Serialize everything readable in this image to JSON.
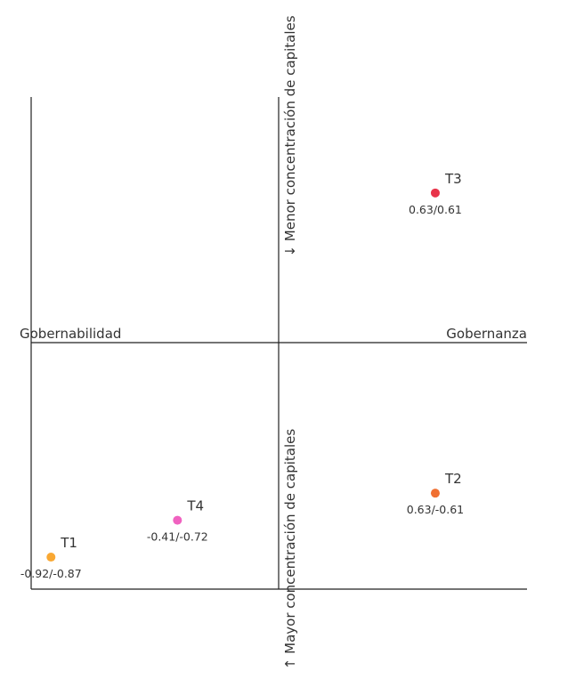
{
  "chart_data": {
    "type": "scatter",
    "title": "",
    "xlabel_left": "Gobernabilidad",
    "xlabel_right": "Gobernanza",
    "ylabel_top": "↓ Menor concentración de capitales",
    "ylabel_bottom": "↑ Mayor concentración de capitales",
    "xlim": [
      -1,
      1
    ],
    "ylim": [
      -1,
      1
    ],
    "grid": false,
    "points": [
      {
        "name": "T1",
        "x": -0.92,
        "y": -0.87,
        "label": "-0.92/-0.87",
        "color": "#f9a833"
      },
      {
        "name": "T2",
        "x": 0.63,
        "y": -0.61,
        "label": "0.63/-0.61",
        "color": "#f07032"
      },
      {
        "name": "T3",
        "x": 0.63,
        "y": 0.61,
        "label": "0.63/0.61",
        "color": "#e8334a"
      },
      {
        "name": "T4",
        "x": -0.41,
        "y": -0.72,
        "label": "-0.41/-0.72",
        "color": "#f062c0"
      }
    ]
  }
}
